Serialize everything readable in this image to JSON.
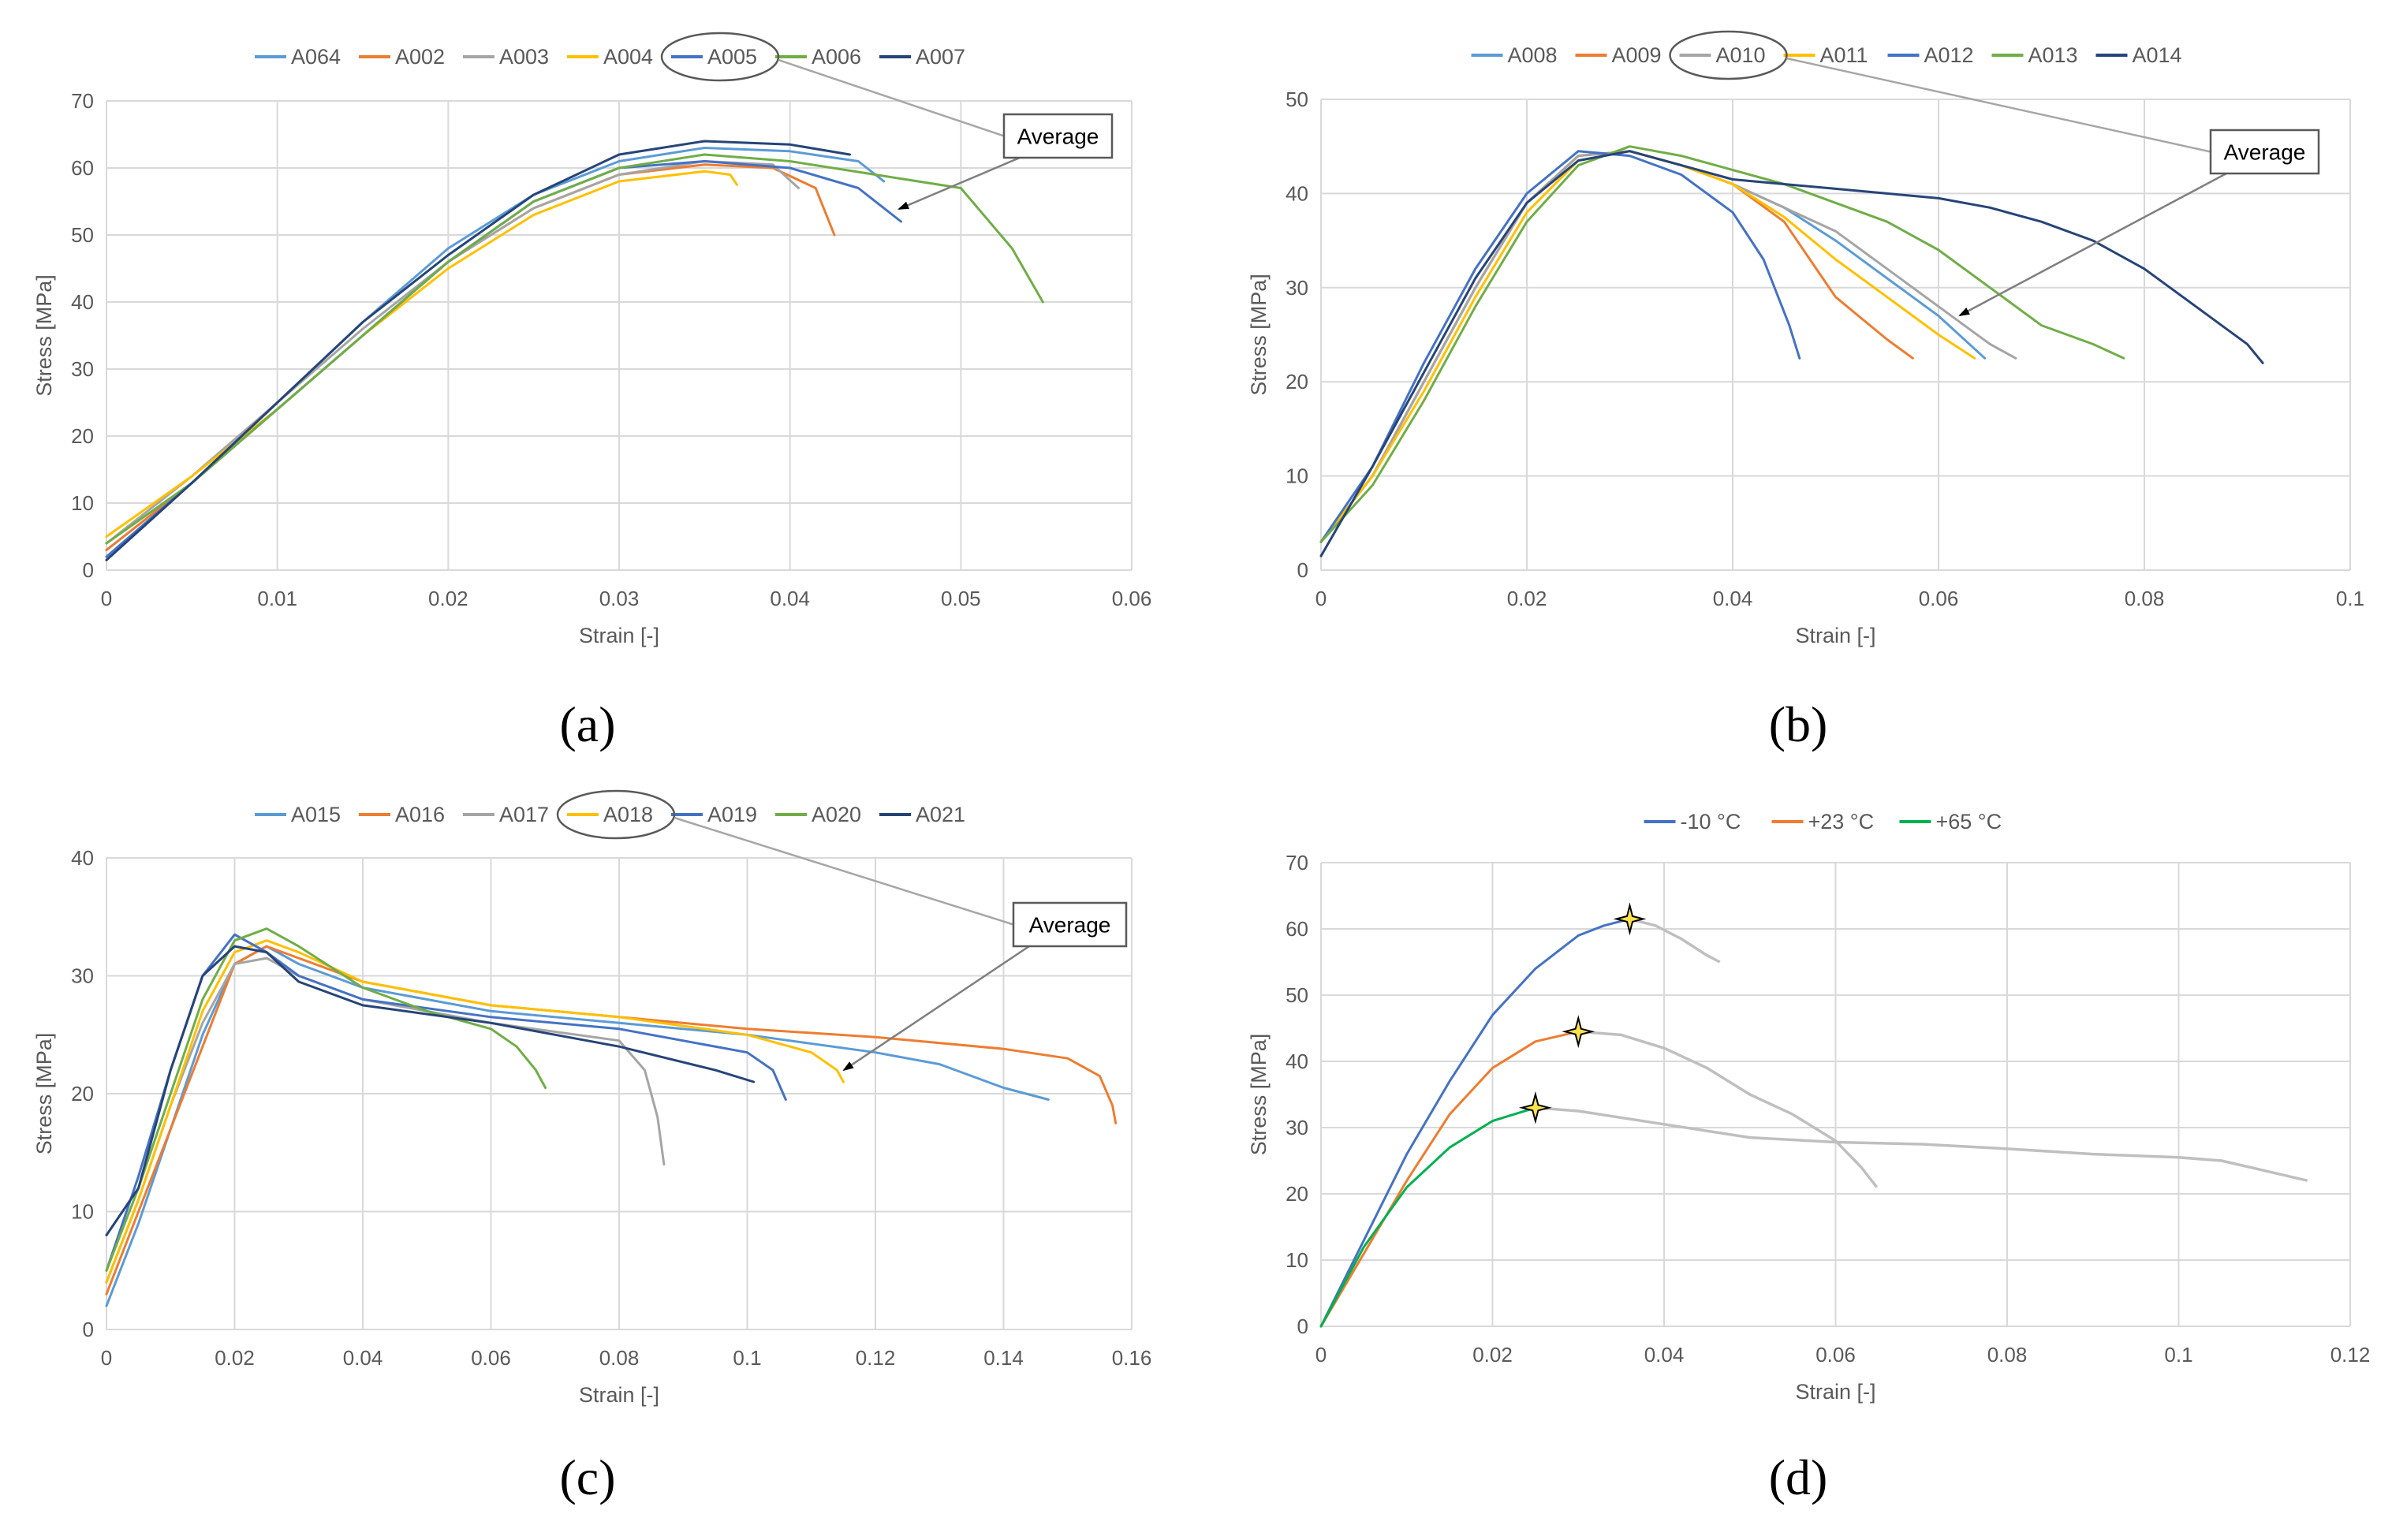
{
  "chart_data": [
    {
      "panel": "(a)",
      "type": "line",
      "xlabel": "Strain [-]",
      "ylabel": "Stress [MPa]",
      "xlim": [
        0,
        0.06
      ],
      "ylim": [
        0,
        70
      ],
      "xticks": [
        0,
        0.01,
        0.02,
        0.03,
        0.04,
        0.05,
        0.06
      ],
      "xtick_labels": [
        "0",
        "0.01",
        "0.02",
        "0.03",
        "0.04",
        "0.05",
        "0.06"
      ],
      "yticks": [
        0,
        10,
        20,
        30,
        40,
        50,
        60,
        70
      ],
      "ytick_labels": [
        "0",
        "10",
        "20",
        "30",
        "40",
        "50",
        "60",
        "70"
      ],
      "grid": true,
      "legend": "top",
      "annotation": {
        "text": "Average",
        "target_series": "A005"
      },
      "series": [
        {
          "name": "A064",
          "color": "#5b9bd5",
          "x": [
            0,
            0.005,
            0.01,
            0.015,
            0.02,
            0.025,
            0.03,
            0.035,
            0.04,
            0.044,
            0.0455
          ],
          "y": [
            3,
            13,
            25,
            37,
            48,
            56,
            61,
            63,
            62.5,
            61,
            58
          ]
        },
        {
          "name": "A002",
          "color": "#ed7d31",
          "x": [
            0,
            0.005,
            0.01,
            0.015,
            0.02,
            0.025,
            0.03,
            0.035,
            0.039,
            0.0415,
            0.0426
          ],
          "y": [
            3,
            13,
            24,
            35,
            46,
            54,
            59,
            60.5,
            60,
            57,
            50
          ]
        },
        {
          "name": "A003",
          "color": "#a5a5a5",
          "x": [
            0,
            0.005,
            0.01,
            0.015,
            0.02,
            0.025,
            0.03,
            0.035,
            0.039,
            0.0405
          ],
          "y": [
            4,
            14,
            25,
            36,
            46,
            54,
            59,
            61,
            60.5,
            57
          ]
        },
        {
          "name": "A004",
          "color": "#ffc000",
          "x": [
            0,
            0.005,
            0.01,
            0.015,
            0.02,
            0.025,
            0.03,
            0.035,
            0.0365,
            0.0369
          ],
          "y": [
            5,
            14,
            24,
            35,
            45,
            53,
            58,
            59.5,
            59,
            57.5
          ]
        },
        {
          "name": "A005",
          "color": "#4472c4",
          "x": [
            0,
            0.005,
            0.01,
            0.015,
            0.02,
            0.025,
            0.03,
            0.035,
            0.04,
            0.044,
            0.0465
          ],
          "y": [
            2,
            13,
            24,
            35,
            46,
            55,
            60,
            61,
            60,
            57,
            52
          ]
        },
        {
          "name": "A006",
          "color": "#70ad47",
          "x": [
            0,
            0.005,
            0.01,
            0.015,
            0.02,
            0.025,
            0.03,
            0.035,
            0.04,
            0.045,
            0.05,
            0.053,
            0.0548
          ],
          "y": [
            4,
            13,
            24,
            35,
            46,
            55,
            60,
            62,
            61,
            59,
            57,
            48,
            40
          ]
        },
        {
          "name": "A007",
          "color": "#264478",
          "x": [
            0,
            0.005,
            0.01,
            0.015,
            0.02,
            0.025,
            0.03,
            0.035,
            0.04,
            0.0435
          ],
          "y": [
            1.5,
            13,
            25,
            37,
            47,
            56,
            62,
            64,
            63.5,
            62
          ]
        }
      ]
    },
    {
      "panel": "(b)",
      "type": "line",
      "xlabel": "Strain [-]",
      "ylabel": "Stress [MPa]",
      "xlim": [
        0,
        0.1
      ],
      "ylim": [
        0,
        50
      ],
      "xticks": [
        0,
        0.02,
        0.04,
        0.06,
        0.08,
        0.1
      ],
      "xtick_labels": [
        "0",
        "0.02",
        "0.04",
        "0.06",
        "0.08",
        "0.1"
      ],
      "yticks": [
        0,
        10,
        20,
        30,
        40,
        50
      ],
      "ytick_labels": [
        "0",
        "10",
        "20",
        "30",
        "40",
        "50"
      ],
      "grid": true,
      "legend": "top",
      "annotation": {
        "text": "Average",
        "target_series": "A010"
      },
      "series": [
        {
          "name": "A008",
          "color": "#5b9bd5",
          "x": [
            0,
            0.005,
            0.01,
            0.015,
            0.02,
            0.025,
            0.03,
            0.035,
            0.04,
            0.045,
            0.05,
            0.055,
            0.06,
            0.0645
          ],
          "y": [
            3,
            10,
            20,
            30,
            39,
            44,
            44.5,
            43,
            41,
            38.5,
            35,
            31,
            27,
            22.5
          ]
        },
        {
          "name": "A009",
          "color": "#ed7d31",
          "x": [
            0,
            0.005,
            0.01,
            0.015,
            0.02,
            0.025,
            0.03,
            0.035,
            0.04,
            0.045,
            0.05,
            0.055,
            0.0575
          ],
          "y": [
            3,
            10,
            20,
            30,
            39,
            44,
            44.5,
            43,
            41,
            37,
            29,
            24.5,
            22.5
          ]
        },
        {
          "name": "A010",
          "color": "#a5a5a5",
          "x": [
            0,
            0.005,
            0.01,
            0.015,
            0.02,
            0.025,
            0.03,
            0.035,
            0.04,
            0.045,
            0.05,
            0.055,
            0.06,
            0.065,
            0.0675
          ],
          "y": [
            3,
            10,
            20,
            30,
            39,
            44,
            44.5,
            43,
            41,
            38.5,
            36,
            32,
            28,
            24,
            22.5
          ]
        },
        {
          "name": "A011",
          "color": "#ffc000",
          "x": [
            0,
            0.005,
            0.01,
            0.015,
            0.02,
            0.025,
            0.03,
            0.035,
            0.04,
            0.045,
            0.05,
            0.055,
            0.06,
            0.0635
          ],
          "y": [
            3,
            10,
            19,
            29,
            38,
            43.5,
            44.5,
            43,
            41,
            37.5,
            33,
            29,
            25,
            22.5
          ]
        },
        {
          "name": "A012",
          "color": "#4472c4",
          "x": [
            0,
            0.005,
            0.01,
            0.015,
            0.02,
            0.025,
            0.03,
            0.035,
            0.04,
            0.043,
            0.0455,
            0.0465
          ],
          "y": [
            3,
            11,
            22,
            32,
            40,
            44.5,
            44,
            42,
            38,
            33,
            26,
            22.5
          ]
        },
        {
          "name": "A013",
          "color": "#70ad47",
          "x": [
            0,
            0.005,
            0.01,
            0.015,
            0.02,
            0.025,
            0.03,
            0.035,
            0.04,
            0.045,
            0.05,
            0.055,
            0.06,
            0.065,
            0.07,
            0.075,
            0.078
          ],
          "y": [
            3,
            9,
            18,
            28,
            37,
            43,
            45,
            44,
            42.5,
            41,
            39,
            37,
            34,
            30,
            26,
            24,
            22.5
          ]
        },
        {
          "name": "A014",
          "color": "#264478",
          "x": [
            0,
            0.005,
            0.01,
            0.015,
            0.02,
            0.025,
            0.03,
            0.035,
            0.04,
            0.045,
            0.05,
            0.055,
            0.06,
            0.065,
            0.07,
            0.075,
            0.08,
            0.085,
            0.09,
            0.0915
          ],
          "y": [
            1.5,
            11,
            21,
            31,
            39,
            43.5,
            44.5,
            43,
            41.5,
            41,
            40.5,
            40,
            39.5,
            38.5,
            37,
            35,
            32,
            28,
            24,
            22
          ]
        }
      ]
    },
    {
      "panel": "(c)",
      "type": "line",
      "xlabel": "Strain [-]",
      "ylabel": "Stress [MPa]",
      "xlim": [
        0,
        0.16
      ],
      "ylim": [
        0,
        40
      ],
      "xticks": [
        0,
        0.02,
        0.04,
        0.06,
        0.08,
        0.1,
        0.12,
        0.14,
        0.16
      ],
      "xtick_labels": [
        "0",
        "0.02",
        "0.04",
        "0.06",
        "0.08",
        "0.1",
        "0.12",
        "0.14",
        "0.16"
      ],
      "yticks": [
        0,
        10,
        20,
        30,
        40
      ],
      "ytick_labels": [
        "0",
        "10",
        "20",
        "30",
        "40"
      ],
      "grid": true,
      "legend": "top",
      "annotation": {
        "text": "Average",
        "target_series": "A018"
      },
      "series": [
        {
          "name": "A015",
          "color": "#5b9bd5",
          "x": [
            0,
            0.005,
            0.01,
            0.015,
            0.02,
            0.025,
            0.03,
            0.04,
            0.06,
            0.08,
            0.1,
            0.12,
            0.13,
            0.14,
            0.147
          ],
          "y": [
            2,
            9,
            17,
            25,
            31,
            32.5,
            31,
            29,
            27,
            26,
            25,
            23.5,
            22.5,
            20.5,
            19.5
          ]
        },
        {
          "name": "A016",
          "color": "#ed7d31",
          "x": [
            0,
            0.005,
            0.01,
            0.015,
            0.02,
            0.025,
            0.03,
            0.04,
            0.06,
            0.08,
            0.1,
            0.12,
            0.14,
            0.15,
            0.155,
            0.157,
            0.1575
          ],
          "y": [
            3,
            10,
            17,
            24,
            31,
            32.5,
            31.5,
            29.5,
            27.5,
            26.5,
            25.5,
            24.8,
            23.8,
            23,
            21.5,
            19,
            17.5
          ]
        },
        {
          "name": "A017",
          "color": "#a5a5a5",
          "x": [
            0,
            0.005,
            0.01,
            0.015,
            0.02,
            0.025,
            0.03,
            0.04,
            0.06,
            0.08,
            0.084,
            0.086,
            0.087
          ],
          "y": [
            4,
            11,
            19,
            26,
            31,
            31.5,
            30,
            28,
            26,
            24.5,
            22,
            18,
            14
          ]
        },
        {
          "name": "A018",
          "color": "#ffc000",
          "x": [
            0,
            0.005,
            0.01,
            0.015,
            0.02,
            0.025,
            0.03,
            0.04,
            0.06,
            0.08,
            0.1,
            0.11,
            0.114,
            0.115
          ],
          "y": [
            4,
            11,
            19,
            27,
            32,
            33,
            32,
            29.5,
            27.5,
            26.5,
            25,
            23.5,
            22,
            21
          ]
        },
        {
          "name": "A019",
          "color": "#4472c4",
          "x": [
            0,
            0.005,
            0.01,
            0.015,
            0.02,
            0.025,
            0.03,
            0.04,
            0.06,
            0.08,
            0.1,
            0.104,
            0.106
          ],
          "y": [
            5,
            13,
            22,
            30,
            33.5,
            32,
            30,
            28,
            26.5,
            25.5,
            23.5,
            22,
            19.5
          ]
        },
        {
          "name": "A020",
          "color": "#70ad47",
          "x": [
            0,
            0.005,
            0.01,
            0.015,
            0.02,
            0.025,
            0.03,
            0.04,
            0.05,
            0.06,
            0.064,
            0.067,
            0.0685
          ],
          "y": [
            5,
            12,
            20,
            28,
            33,
            34,
            32.5,
            29,
            27,
            25.5,
            24,
            22,
            20.5
          ]
        },
        {
          "name": "A021",
          "color": "#264478",
          "x": [
            0,
            0.005,
            0.01,
            0.015,
            0.02,
            0.025,
            0.03,
            0.04,
            0.06,
            0.08,
            0.095,
            0.101
          ],
          "y": [
            8,
            12,
            22,
            30,
            32.5,
            32,
            29.5,
            27.5,
            26,
            24,
            22,
            21
          ]
        }
      ]
    },
    {
      "panel": "(d)",
      "type": "line",
      "xlabel": "Strain [-]",
      "ylabel": "Stress [MPa]",
      "xlim": [
        0,
        0.12
      ],
      "ylim": [
        0,
        70
      ],
      "xticks": [
        0,
        0.02,
        0.04,
        0.06,
        0.08,
        0.1,
        0.12
      ],
      "xtick_labels": [
        "0",
        "0.02",
        "0.04",
        "0.06",
        "0.08",
        "0.1",
        "0.12"
      ],
      "yticks": [
        0,
        10,
        20,
        30,
        40,
        50,
        60,
        70
      ],
      "ytick_labels": [
        "0",
        "10",
        "20",
        "30",
        "40",
        "50",
        "60",
        "70"
      ],
      "grid": true,
      "legend": "top",
      "marker_color": "#ffe34d",
      "tail_color": "#bfbfbf",
      "series": [
        {
          "name": "-10 °C",
          "color": "#4472c4",
          "x": [
            0,
            0.005,
            0.01,
            0.015,
            0.02,
            0.025,
            0.03,
            0.033,
            0.036
          ],
          "y": [
            0,
            13,
            26,
            37,
            47,
            54,
            59,
            60.5,
            61.5
          ],
          "peak": [
            0.036,
            61.5
          ],
          "tail": {
            "x": [
              0.036,
              0.039,
              0.042,
              0.045,
              0.0465
            ],
            "y": [
              61.5,
              60.5,
              58.5,
              56,
              55
            ]
          }
        },
        {
          "name": "+23 °C",
          "color": "#ed7d31",
          "x": [
            0,
            0.005,
            0.01,
            0.015,
            0.02,
            0.025,
            0.03
          ],
          "y": [
            0,
            11,
            22,
            32,
            39,
            43,
            44.5
          ],
          "peak": [
            0.03,
            44.5
          ],
          "tail": {
            "x": [
              0.03,
              0.035,
              0.04,
              0.045,
              0.05,
              0.055,
              0.06,
              0.063,
              0.0648
            ],
            "y": [
              44.5,
              44,
              42,
              39,
              35,
              32,
              28,
              24,
              21
            ]
          }
        },
        {
          "name": "+65 °C",
          "color": "#00b050",
          "x": [
            0,
            0.005,
            0.01,
            0.015,
            0.02,
            0.025
          ],
          "y": [
            0,
            12,
            21,
            27,
            31,
            33
          ],
          "peak": [
            0.025,
            33
          ],
          "tail": {
            "x": [
              0.025,
              0.03,
              0.04,
              0.05,
              0.06,
              0.07,
              0.08,
              0.09,
              0.1,
              0.105,
              0.11,
              0.115
            ],
            "y": [
              33,
              32.5,
              30.5,
              28.5,
              27.8,
              27.5,
              26.8,
              26,
              25.5,
              25,
              23.5,
              22
            ]
          }
        }
      ]
    }
  ]
}
